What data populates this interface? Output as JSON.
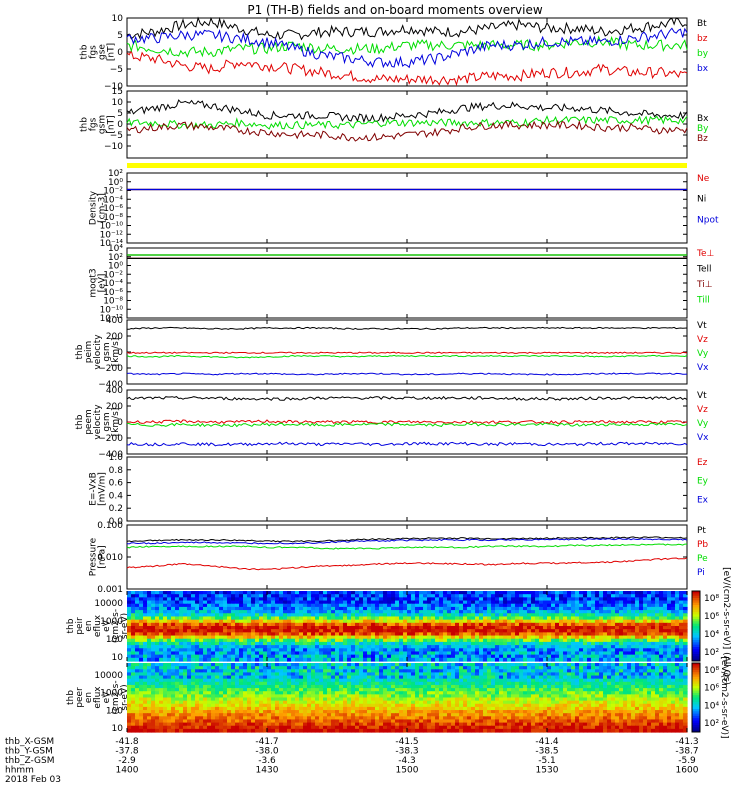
{
  "title": "P1 (TH-B) fields and on-board moments overview",
  "colors": {
    "black": "#000000",
    "red": "#e00000",
    "green": "#00dd00",
    "blue": "#0000dd",
    "yellow": "#ffff00",
    "darkred": "#800000"
  },
  "chart_data": {
    "type": "line",
    "title": "P1 (TH-B) fields and on-board moments overview",
    "x_axis": {
      "rows": [
        {
          "label": "thb_X-GSM",
          "values": [
            "-41.8",
            "-41.7",
            "-41.5",
            "-41.4",
            "-41.3"
          ]
        },
        {
          "label": "thb_Y-GSM",
          "values": [
            "-37.8",
            "-38.0",
            "-38.3",
            "-38.5",
            "-38.7"
          ]
        },
        {
          "label": "thb_Z-GSM",
          "values": [
            "-2.9",
            "-3.6",
            "-4.3",
            "-5.1",
            "-5.9"
          ]
        },
        {
          "label": "hhmm",
          "values": [
            "1400",
            "1430",
            "1500",
            "1530",
            "1600"
          ]
        }
      ],
      "date": "2018 Feb 03",
      "range_minutes": [
        0,
        120
      ],
      "tick_minutes": [
        0,
        30,
        60,
        90,
        120
      ]
    },
    "panels": [
      {
        "id": "fgs_gse",
        "ylabel": [
          "thb",
          "fgs",
          "gse",
          "[nT]"
        ],
        "type": "line",
        "ylim": [
          -10,
          10
        ],
        "ticks": [
          "10",
          "5",
          "0",
          "−5",
          "−10"
        ],
        "series": [
          {
            "name": "Bt",
            "color": "black",
            "values": [
              5,
              6,
              8,
              9,
              7,
              5,
              5,
              6,
              6,
              6,
              7,
              6,
              6,
              7,
              8,
              7,
              7,
              6,
              7,
              8,
              9
            ]
          },
          {
            "name": "bz",
            "color": "red",
            "values": [
              -1,
              -2,
              -4,
              -5,
              -3,
              -4,
              -5,
              -6,
              -7,
              -8,
              -8,
              -8,
              -8,
              -7,
              -7,
              -6,
              -6,
              -5,
              -6,
              -6,
              -7
            ]
          },
          {
            "name": "by",
            "color": "green",
            "values": [
              2,
              1,
              0,
              0,
              1,
              1,
              2,
              1,
              1,
              1,
              2,
              2,
              2,
              2,
              2,
              2,
              3,
              3,
              2,
              2,
              2
            ]
          },
          {
            "name": "bx",
            "color": "blue",
            "values": [
              4,
              4,
              5,
              5,
              4,
              3,
              1,
              -1,
              -2,
              -3,
              -3,
              -2,
              0,
              2,
              2,
              3,
              3,
              3,
              4,
              5,
              6
            ]
          }
        ]
      },
      {
        "id": "fgs_gsm",
        "ylabel": [
          "thb",
          "fgs",
          "gsm",
          "[nT]"
        ],
        "type": "line",
        "ylim": [
          -15,
          15
        ],
        "ticks": [
          "15",
          "10",
          "5",
          "0",
          "−5",
          "−10"
        ],
        "series": [
          {
            "name": "Bx",
            "color": "black",
            "values": [
              6,
              8,
              10,
              9,
              7,
              5,
              5,
              5,
              4,
              4,
              5,
              6,
              8,
              9,
              9,
              8,
              8,
              7,
              6,
              5,
              5
            ]
          },
          {
            "name": "By",
            "color": "green",
            "values": [
              2,
              2,
              1,
              1,
              2,
              1,
              1,
              1,
              1,
              2,
              2,
              2,
              2,
              2,
              2,
              3,
              3,
              3,
              3,
              3,
              3
            ]
          },
          {
            "name": "Bz",
            "color": "darkred",
            "values": [
              -1,
              0,
              1,
              0,
              -1,
              -2,
              -3,
              -3,
              -4,
              -4,
              -3,
              -2,
              0,
              1,
              1,
              1,
              1,
              0,
              0,
              -1,
              -1
            ]
          }
        ]
      },
      {
        "id": "density",
        "ylabel": [
          "Density",
          "[cm-3]"
        ],
        "type": "log",
        "ylim_exp": [
          -14,
          3
        ],
        "ticks": [
          "10²",
          "10⁰",
          "10⁻²",
          "10⁻⁴",
          "10⁻⁶",
          "10⁻⁸",
          "10⁻¹⁰",
          "10⁻¹²",
          "10⁻¹⁴"
        ],
        "series": [
          {
            "name": "Ne",
            "color": "red",
            "level": 0.1
          },
          {
            "name": "Ni",
            "color": "black",
            "level": 0.1
          },
          {
            "name": "Npot",
            "color": "blue",
            "level": 0.1
          }
        ]
      },
      {
        "id": "temp",
        "ylabel": [
          "moqt3",
          "[eV]"
        ],
        "type": "log",
        "ylim_exp": [
          -12,
          5
        ],
        "ticks": [
          "10⁴",
          "10²",
          "10⁰",
          "10⁻²",
          "10⁻⁴",
          "10⁻⁶",
          "10⁻⁸",
          "10⁻¹⁰",
          "10⁻¹²"
        ],
        "series": [
          {
            "name": "Te⊥",
            "color": "red",
            "level": 300
          },
          {
            "name": "Tell",
            "color": "black",
            "level": 300
          },
          {
            "name": "Ti⊥",
            "color": "darkred",
            "level": 2000
          },
          {
            "name": "Till",
            "color": "green",
            "level": 2000
          }
        ]
      },
      {
        "id": "peim_vel",
        "ylabel": [
          "thb",
          "peim",
          "velocity",
          "gsm",
          "[km/s]"
        ],
        "type": "line",
        "ylim": [
          -400,
          400
        ],
        "ticks": [
          "400",
          "200",
          "0",
          "−200",
          "−400"
        ],
        "series": [
          {
            "name": "Vt",
            "color": "black",
            "values": [
              290,
              300,
              300,
              290,
              290,
              300,
              300,
              300,
              290,
              290,
              290,
              290,
              300,
              300,
              300,
              300,
              300,
              300,
              300,
              300,
              300
            ]
          },
          {
            "name": "Vz",
            "color": "red",
            "values": [
              -10,
              -10,
              -10,
              -10,
              -10,
              -10,
              -10,
              -10,
              -10,
              -10,
              -10,
              -10,
              -10,
              -10,
              -10,
              -10,
              -10,
              -10,
              -10,
              -10,
              -10
            ]
          },
          {
            "name": "Vy",
            "color": "green",
            "values": [
              -50,
              -60,
              -50,
              -60,
              -70,
              -60,
              -50,
              -50,
              -60,
              -50,
              -50,
              -50,
              -50,
              -50,
              -50,
              -50,
              -50,
              -60,
              -50,
              -50,
              -50
            ]
          },
          {
            "name": "Vx",
            "color": "blue",
            "values": [
              -270,
              -280,
              -270,
              -280,
              -270,
              -270,
              -280,
              -280,
              -270,
              -270,
              -280,
              -280,
              -270,
              -270,
              -280,
              -280,
              -280,
              -270,
              -270,
              -270,
              -270
            ]
          }
        ]
      },
      {
        "id": "peem_vel",
        "ylabel": [
          "thb",
          "peem",
          "velocity",
          "gsm",
          "[km/s]"
        ],
        "type": "line",
        "ylim": [
          -400,
          400
        ],
        "ticks": [
          "400",
          "200",
          "0",
          "−200",
          "−400"
        ],
        "series": [
          {
            "name": "Vt",
            "color": "black",
            "values": [
              290,
              300,
              300,
              300,
              290,
              290,
              290,
              300,
              300,
              300,
              300,
              300,
              300,
              300,
              290,
              290,
              290,
              300,
              300,
              300,
              290
            ]
          },
          {
            "name": "Vz",
            "color": "red",
            "values": [
              0,
              0,
              10,
              0,
              0,
              10,
              0,
              0,
              0,
              0,
              0,
              0,
              0,
              0,
              0,
              0,
              0,
              0,
              0,
              0,
              0
            ]
          },
          {
            "name": "Vy",
            "color": "green",
            "values": [
              -30,
              -40,
              -30,
              -40,
              -40,
              -30,
              -30,
              -40,
              -30,
              -30,
              -30,
              -40,
              -30,
              -30,
              -30,
              -30,
              -40,
              -30,
              -30,
              -30,
              -30
            ]
          },
          {
            "name": "Vx",
            "color": "blue",
            "values": [
              -270,
              -280,
              -270,
              -280,
              -280,
              -270,
              -270,
              -280,
              -270,
              -280,
              -270,
              -270,
              -270,
              -280,
              -270,
              -280,
              -280,
              -270,
              -270,
              -270,
              -270
            ]
          }
        ]
      },
      {
        "id": "efield",
        "ylabel": [
          "E=-VxB",
          "[mV/m]"
        ],
        "type": "empty",
        "ylim": [
          0,
          1
        ],
        "ticks": [
          "1.0",
          "0.8",
          "0.6",
          "0.4",
          "0.2",
          "0.0"
        ],
        "series": [
          {
            "name": "Ez",
            "color": "red"
          },
          {
            "name": "Ey",
            "color": "green"
          },
          {
            "name": "Ex",
            "color": "blue"
          }
        ]
      },
      {
        "id": "pressure",
        "ylabel": [
          "Pressure",
          "[nPa]"
        ],
        "type": "log",
        "ylim_exp": [
          -3,
          0
        ],
        "ticks": [
          "0.100",
          "0.010",
          "0.001"
        ],
        "series": [
          {
            "name": "Pt",
            "color": "black",
            "values": [
              0.17,
              0.19,
              0.2,
              0.2,
              0.19,
              0.18,
              0.17,
              0.18,
              0.2,
              0.22,
              0.23,
              0.24,
              0.24,
              0.23,
              0.23,
              0.24,
              0.25,
              0.25,
              0.26,
              0.26,
              0.25
            ]
          },
          {
            "name": "Pb",
            "color": "red",
            "values": [
              0.01,
              0.012,
              0.015,
              0.012,
              0.009,
              0.008,
              0.01,
              0.012,
              0.013,
              0.015,
              0.016,
              0.016,
              0.015,
              0.014,
              0.016,
              0.016,
              0.017,
              0.018,
              0.02,
              0.025,
              0.028
            ]
          },
          {
            "name": "Pe",
            "color": "green",
            "values": [
              0.09,
              0.1,
              0.1,
              0.1,
              0.1,
              0.09,
              0.09,
              0.08,
              0.08,
              0.08,
              0.09,
              0.09,
              0.09,
              0.1,
              0.1,
              0.1,
              0.11,
              0.11,
              0.12,
              0.12,
              0.12
            ]
          },
          {
            "name": "Pi",
            "color": "blue",
            "values": [
              0.14,
              0.14,
              0.15,
              0.15,
              0.14,
              0.14,
              0.14,
              0.15,
              0.17,
              0.18,
              0.19,
              0.2,
              0.2,
              0.2,
              0.2,
              0.21,
              0.21,
              0.22,
              0.22,
              0.21,
              0.21
            ]
          }
        ]
      },
      {
        "id": "peir",
        "ylabel": [
          "thb",
          "peir",
          "en",
          "eflux",
          "eV",
          "(cm2-s-",
          "sr-eV)"
        ],
        "type": "heatmap",
        "ticks": [
          "10000",
          "1000",
          "100",
          "10"
        ],
        "cbar_ticks": [
          "10⁸",
          "10⁶",
          "10⁴",
          "10²"
        ],
        "cbar_label": "[eV/(cm2-s-sr-eV)] (All Qs)"
      },
      {
        "id": "peer",
        "ylabel": [
          "thb",
          "peer",
          "en",
          "eflux",
          "eV",
          "(cm2-s-",
          "sr-eV)"
        ],
        "type": "heatmap",
        "ticks": [
          "10000",
          "1000",
          "100",
          "10"
        ],
        "cbar_ticks": [
          "10⁸",
          "10⁶",
          "10⁴",
          "10²"
        ],
        "cbar_label": "[eV/(cm2-s-sr-eV)]"
      }
    ]
  }
}
